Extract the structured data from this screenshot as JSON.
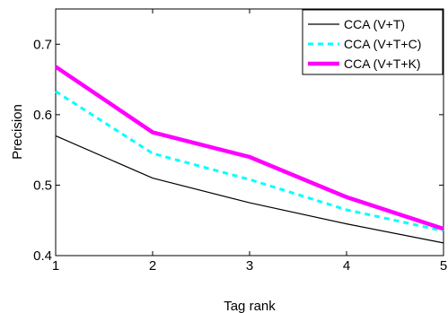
{
  "chart_data": {
    "type": "line",
    "title": "",
    "xlabel": "Tag rank",
    "ylabel": "Precision",
    "x": [
      1,
      2,
      3,
      4,
      5
    ],
    "xlim": [
      1,
      5
    ],
    "ylim": [
      0.4,
      0.75
    ],
    "xticks": [
      "1",
      "2",
      "3",
      "4",
      "5"
    ],
    "yticks": [
      "0.4",
      "0.5",
      "0.6",
      "0.7"
    ],
    "grid": false,
    "legend_position": "top-right",
    "series": [
      {
        "name": "CCA (V+T)",
        "values": [
          0.57,
          0.51,
          0.475,
          0.445,
          0.418
        ],
        "color": "#000000",
        "style": "solid"
      },
      {
        "name": "CCA (V+T+C)",
        "values": [
          0.633,
          0.545,
          0.508,
          0.465,
          0.435
        ],
        "color": "#00ffff",
        "style": "dashed"
      },
      {
        "name": "CCA (V+T+K)",
        "values": [
          0.668,
          0.575,
          0.54,
          0.483,
          0.438
        ],
        "color": "#ff00ff",
        "style": "thick"
      }
    ]
  }
}
